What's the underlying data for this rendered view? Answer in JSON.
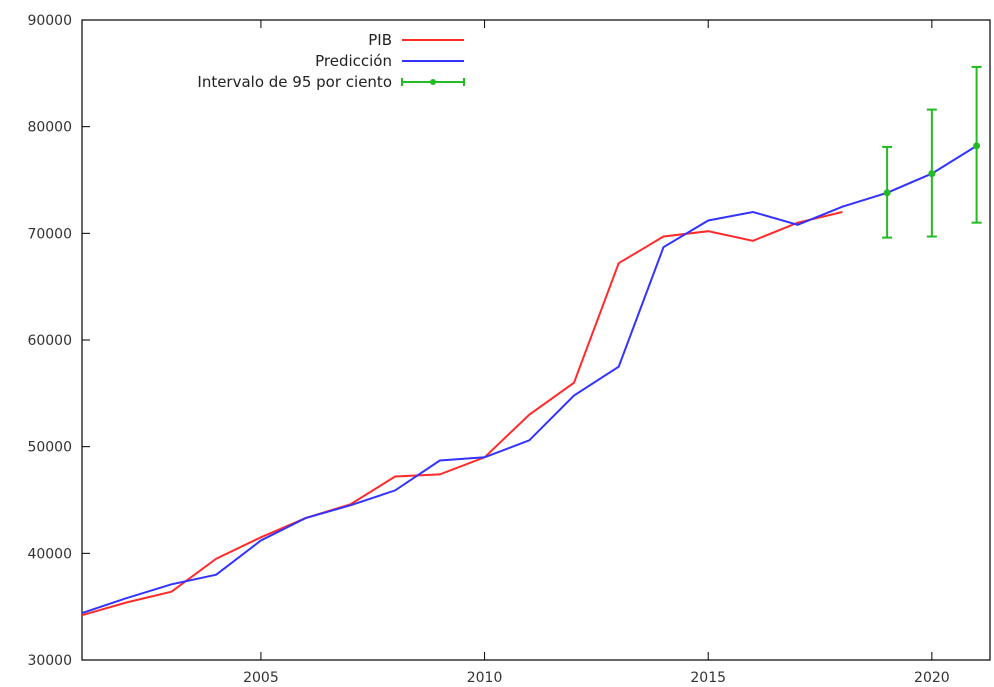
{
  "chart_data": {
    "type": "line",
    "title": "",
    "xlabel": "",
    "ylabel": "",
    "xlim": [
      2001,
      2021.3
    ],
    "ylim": [
      30000,
      90000
    ],
    "x_ticks": [
      2005,
      2010,
      2015,
      2020
    ],
    "x_tick_labels": [
      "2005",
      "2010",
      "2015",
      "2020"
    ],
    "y_ticks": [
      30000,
      40000,
      50000,
      60000,
      70000,
      80000,
      90000
    ],
    "y_tick_labels": [
      "30000",
      "40000",
      "50000",
      "60000",
      "70000",
      "80000",
      "90000"
    ],
    "grid": false,
    "legend_position": "top-center",
    "series": [
      {
        "name": "PIB",
        "color": "#ff2b2b",
        "x": [
          2001,
          2002,
          2003,
          2004,
          2005,
          2006,
          2007,
          2008,
          2009,
          2010,
          2011,
          2012,
          2013,
          2014,
          2015,
          2016,
          2017,
          2018
        ],
        "values": [
          34200,
          35400,
          36400,
          39500,
          41500,
          43300,
          44600,
          47200,
          47400,
          49000,
          53000,
          56000,
          67200,
          69700,
          70200,
          69300,
          71000,
          72000
        ]
      },
      {
        "name": "Predicción",
        "color": "#3333ff",
        "x": [
          2001,
          2002,
          2003,
          2004,
          2005,
          2006,
          2007,
          2008,
          2009,
          2010,
          2011,
          2012,
          2013,
          2014,
          2015,
          2016,
          2017,
          2018,
          2019,
          2020,
          2021
        ],
        "values": [
          34400,
          35800,
          37100,
          38000,
          41200,
          43300,
          44500,
          45900,
          48700,
          49000,
          50600,
          54800,
          57500,
          68700,
          71200,
          72000,
          70800,
          72500,
          73800,
          75600,
          78200
        ]
      },
      {
        "name": "Intervalo de 95 por ciento",
        "color": "#22bb22",
        "type": "errorbar",
        "x": [
          2019,
          2020,
          2021
        ],
        "values": [
          73800,
          75600,
          78200
        ],
        "lower": [
          69600,
          69700,
          71000
        ],
        "upper": [
          78100,
          81600,
          85600
        ]
      }
    ]
  }
}
